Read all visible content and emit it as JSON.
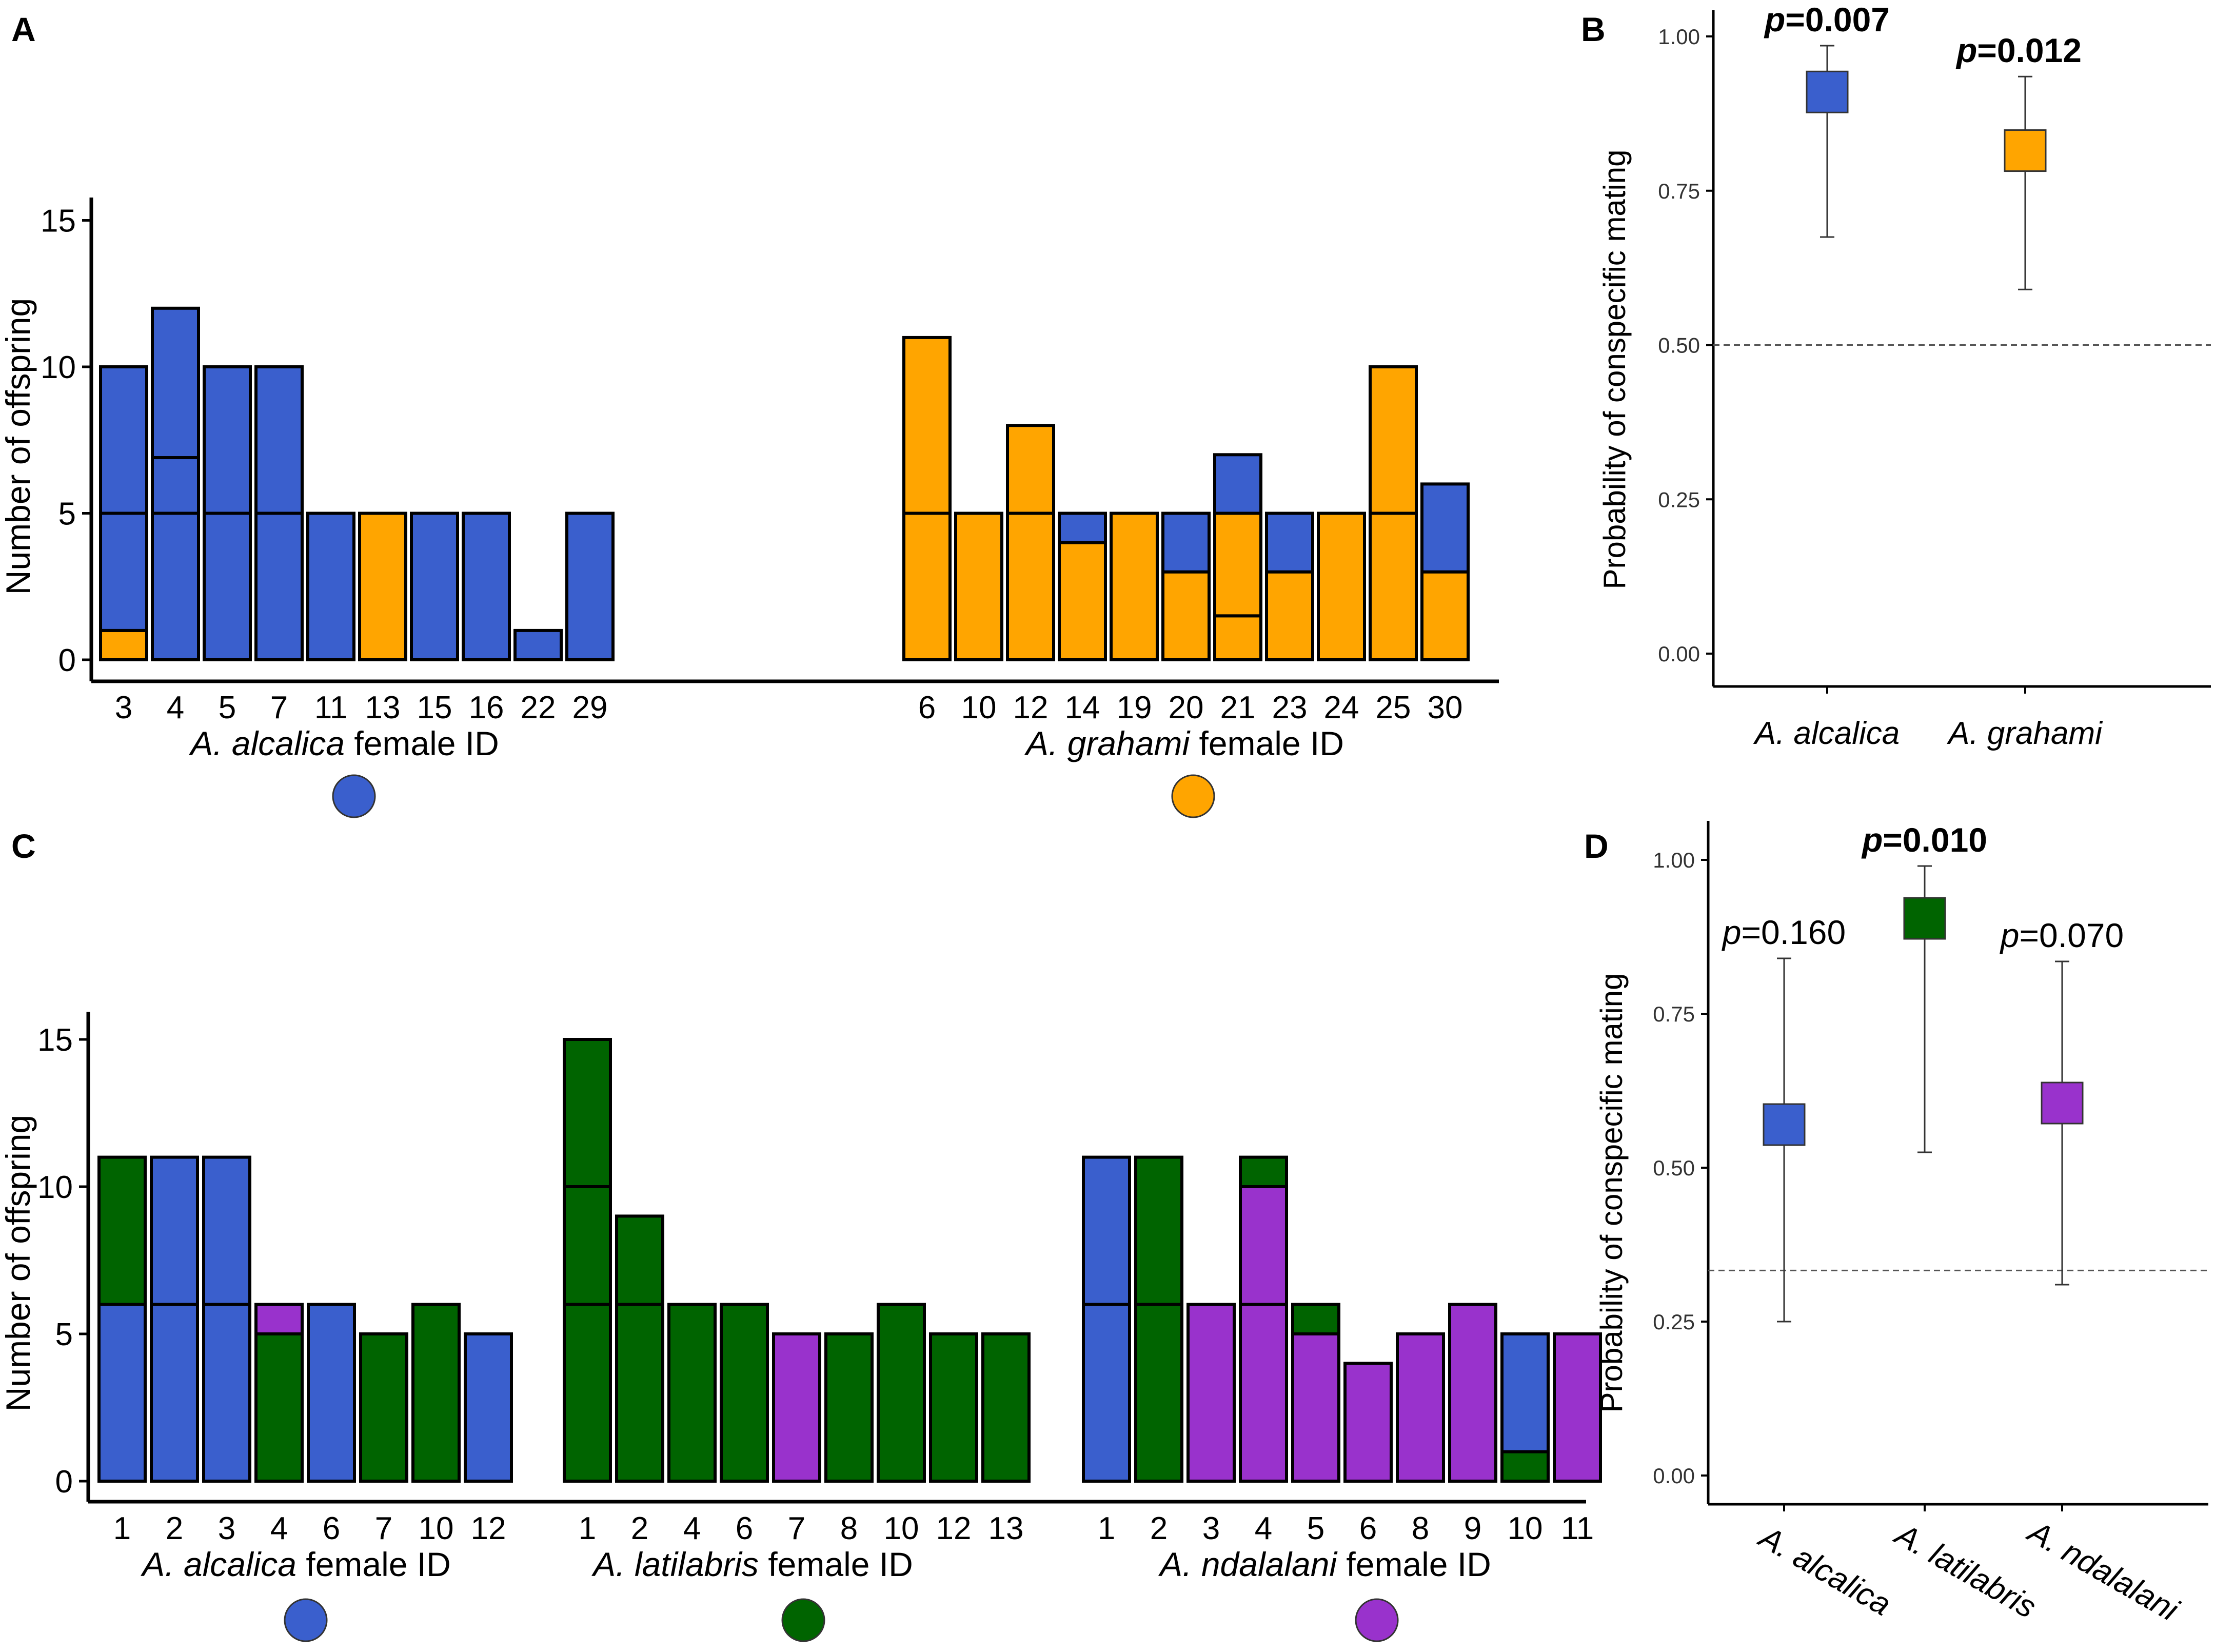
{
  "colors": {
    "alcalica": "#3a5fcd",
    "grahami": "#ffa500",
    "latilabris": "#006400",
    "ndalalani": "#9932cc",
    "outline": "#000000",
    "axis": "#000000",
    "errorbar": "#333333",
    "reference_line": "#555555"
  },
  "chart_data": [
    {
      "panel": "A",
      "type": "bar",
      "stacked": true,
      "ylabel": "Number of offspring",
      "ylim": [
        0,
        16
      ],
      "yticks": [
        0,
        5,
        10,
        15
      ],
      "groups": [
        {
          "xlabel_italic": "A. alcalica",
          "xlabel_rest": "female ID",
          "color_key": "alcalica",
          "bars": [
            {
              "id": "3",
              "segments": [
                {
                  "from": 0,
                  "to": 1,
                  "sp": "grahami"
                },
                {
                  "from": 1,
                  "to": 5,
                  "sp": "alcalica"
                },
                {
                  "from": 5,
                  "to": 10,
                  "sp": "alcalica"
                }
              ]
            },
            {
              "id": "4",
              "segments": [
                {
                  "from": 0,
                  "to": 5,
                  "sp": "alcalica"
                },
                {
                  "from": 5,
                  "to": 6.9,
                  "sp": "alcalica"
                },
                {
                  "from": 6.9,
                  "to": 12,
                  "sp": "alcalica"
                }
              ]
            },
            {
              "id": "5",
              "segments": [
                {
                  "from": 0,
                  "to": 5,
                  "sp": "alcalica"
                },
                {
                  "from": 5,
                  "to": 10,
                  "sp": "alcalica"
                }
              ]
            },
            {
              "id": "7",
              "segments": [
                {
                  "from": 0,
                  "to": 5,
                  "sp": "alcalica"
                },
                {
                  "from": 5,
                  "to": 10,
                  "sp": "alcalica"
                }
              ]
            },
            {
              "id": "11",
              "segments": [
                {
                  "from": 0,
                  "to": 5,
                  "sp": "alcalica"
                }
              ]
            },
            {
              "id": "13",
              "segments": [
                {
                  "from": 0,
                  "to": 5,
                  "sp": "grahami"
                }
              ]
            },
            {
              "id": "15",
              "segments": [
                {
                  "from": 0,
                  "to": 5,
                  "sp": "alcalica"
                }
              ]
            },
            {
              "id": "16",
              "segments": [
                {
                  "from": 0,
                  "to": 5,
                  "sp": "alcalica"
                }
              ]
            },
            {
              "id": "22",
              "segments": [
                {
                  "from": 0,
                  "to": 1,
                  "sp": "alcalica"
                }
              ]
            },
            {
              "id": "29",
              "segments": [
                {
                  "from": 0,
                  "to": 5,
                  "sp": "alcalica"
                }
              ]
            }
          ]
        },
        {
          "xlabel_italic": "A. grahami",
          "xlabel_rest": "female ID",
          "color_key": "grahami",
          "bars": [
            {
              "id": "6",
              "segments": [
                {
                  "from": 0,
                  "to": 5,
                  "sp": "grahami"
                },
                {
                  "from": 5,
                  "to": 11,
                  "sp": "grahami"
                }
              ]
            },
            {
              "id": "10",
              "segments": [
                {
                  "from": 0,
                  "to": 5,
                  "sp": "grahami"
                }
              ]
            },
            {
              "id": "12",
              "segments": [
                {
                  "from": 0,
                  "to": 5,
                  "sp": "grahami"
                },
                {
                  "from": 5,
                  "to": 8,
                  "sp": "grahami"
                }
              ]
            },
            {
              "id": "14",
              "segments": [
                {
                  "from": 0,
                  "to": 4,
                  "sp": "grahami"
                },
                {
                  "from": 4,
                  "to": 5,
                  "sp": "alcalica"
                }
              ]
            },
            {
              "id": "19",
              "segments": [
                {
                  "from": 0,
                  "to": 5,
                  "sp": "grahami"
                }
              ]
            },
            {
              "id": "20",
              "segments": [
                {
                  "from": 0,
                  "to": 3,
                  "sp": "grahami"
                },
                {
                  "from": 3,
                  "to": 5,
                  "sp": "alcalica"
                }
              ]
            },
            {
              "id": "21",
              "segments": [
                {
                  "from": 0,
                  "to": 1.5,
                  "sp": "grahami"
                },
                {
                  "from": 1.5,
                  "to": 5,
                  "sp": "grahami"
                },
                {
                  "from": 5,
                  "to": 7,
                  "sp": "alcalica"
                }
              ]
            },
            {
              "id": "23",
              "segments": [
                {
                  "from": 0,
                  "to": 3,
                  "sp": "grahami"
                },
                {
                  "from": 3,
                  "to": 5,
                  "sp": "alcalica"
                }
              ]
            },
            {
              "id": "24",
              "segments": [
                {
                  "from": 0,
                  "to": 5,
                  "sp": "grahami"
                }
              ]
            },
            {
              "id": "25",
              "segments": [
                {
                  "from": 0,
                  "to": 5,
                  "sp": "grahami"
                },
                {
                  "from": 5,
                  "to": 10,
                  "sp": "grahami"
                }
              ]
            },
            {
              "id": "30",
              "segments": [
                {
                  "from": 0,
                  "to": 3,
                  "sp": "grahami"
                },
                {
                  "from": 3,
                  "to": 6,
                  "sp": "alcalica"
                }
              ]
            }
          ]
        }
      ]
    },
    {
      "panel": "B",
      "type": "scatter",
      "ylabel": "Probability of conspecific mating",
      "ylim": [
        0,
        1.05
      ],
      "yticks": [
        "0.00",
        "0.25",
        "0.50",
        "0.75",
        "1.00"
      ],
      "reference_line": 0.5,
      "points": [
        {
          "label": "A. alcalica",
          "estimate": 0.91,
          "lower": 0.675,
          "upper": 0.985,
          "p_label": "p",
          "p_value": "=0.007",
          "bold": true,
          "color_key": "alcalica"
        },
        {
          "label": "A. grahami",
          "estimate": 0.815,
          "lower": 0.59,
          "upper": 0.935,
          "p_label": "p",
          "p_value": "=0.012",
          "bold": true,
          "color_key": "grahami"
        }
      ]
    },
    {
      "panel": "C",
      "type": "bar",
      "stacked": true,
      "ylabel": "Number of offspring",
      "ylim": [
        0,
        16
      ],
      "yticks": [
        0,
        5,
        10,
        15
      ],
      "groups": [
        {
          "xlabel_italic": "A. alcalica",
          "xlabel_rest": "female ID",
          "color_key": "alcalica",
          "bars": [
            {
              "id": "1",
              "segments": [
                {
                  "from": 0,
                  "to": 6,
                  "sp": "alcalica"
                },
                {
                  "from": 6,
                  "to": 11,
                  "sp": "latilabris"
                }
              ]
            },
            {
              "id": "2",
              "segments": [
                {
                  "from": 0,
                  "to": 6,
                  "sp": "alcalica"
                },
                {
                  "from": 6,
                  "to": 11,
                  "sp": "alcalica"
                }
              ]
            },
            {
              "id": "3",
              "segments": [
                {
                  "from": 0,
                  "to": 6,
                  "sp": "alcalica"
                },
                {
                  "from": 6,
                  "to": 11,
                  "sp": "alcalica"
                }
              ]
            },
            {
              "id": "4",
              "segments": [
                {
                  "from": 0,
                  "to": 5,
                  "sp": "latilabris"
                },
                {
                  "from": 5,
                  "to": 6,
                  "sp": "ndalalani"
                }
              ]
            },
            {
              "id": "6",
              "segments": [
                {
                  "from": 0,
                  "to": 6,
                  "sp": "alcalica"
                }
              ]
            },
            {
              "id": "7",
              "segments": [
                {
                  "from": 0,
                  "to": 5,
                  "sp": "latilabris"
                }
              ]
            },
            {
              "id": "10",
              "segments": [
                {
                  "from": 0,
                  "to": 6,
                  "sp": "latilabris"
                }
              ]
            },
            {
              "id": "12",
              "segments": [
                {
                  "from": 0,
                  "to": 5,
                  "sp": "alcalica"
                }
              ]
            }
          ]
        },
        {
          "xlabel_italic": "A. latilabris",
          "xlabel_rest": "female ID",
          "color_key": "latilabris",
          "bars": [
            {
              "id": "1",
              "segments": [
                {
                  "from": 0,
                  "to": 6,
                  "sp": "latilabris"
                },
                {
                  "from": 6,
                  "to": 10,
                  "sp": "latilabris"
                },
                {
                  "from": 10,
                  "to": 15,
                  "sp": "latilabris"
                }
              ]
            },
            {
              "id": "2",
              "segments": [
                {
                  "from": 0,
                  "to": 6,
                  "sp": "latilabris"
                },
                {
                  "from": 6,
                  "to": 9,
                  "sp": "latilabris"
                }
              ]
            },
            {
              "id": "4",
              "segments": [
                {
                  "from": 0,
                  "to": 6,
                  "sp": "latilabris"
                }
              ]
            },
            {
              "id": "6",
              "segments": [
                {
                  "from": 0,
                  "to": 6,
                  "sp": "latilabris"
                }
              ]
            },
            {
              "id": "7",
              "segments": [
                {
                  "from": 0,
                  "to": 5,
                  "sp": "ndalalani"
                }
              ]
            },
            {
              "id": "8",
              "segments": [
                {
                  "from": 0,
                  "to": 5,
                  "sp": "latilabris"
                }
              ]
            },
            {
              "id": "10",
              "segments": [
                {
                  "from": 0,
                  "to": 6,
                  "sp": "latilabris"
                }
              ]
            },
            {
              "id": "12",
              "segments": [
                {
                  "from": 0,
                  "to": 5,
                  "sp": "latilabris"
                }
              ]
            },
            {
              "id": "13",
              "segments": [
                {
                  "from": 0,
                  "to": 5,
                  "sp": "latilabris"
                }
              ]
            }
          ]
        },
        {
          "xlabel_italic": "A. ndalalani",
          "xlabel_rest": "female ID",
          "color_key": "ndalalani",
          "bars": [
            {
              "id": "1",
              "segments": [
                {
                  "from": 0,
                  "to": 6,
                  "sp": "alcalica"
                },
                {
                  "from": 6,
                  "to": 11,
                  "sp": "alcalica"
                }
              ]
            },
            {
              "id": "2",
              "segments": [
                {
                  "from": 0,
                  "to": 6,
                  "sp": "latilabris"
                },
                {
                  "from": 6,
                  "to": 11,
                  "sp": "latilabris"
                }
              ]
            },
            {
              "id": "3",
              "segments": [
                {
                  "from": 0,
                  "to": 6,
                  "sp": "ndalalani"
                }
              ]
            },
            {
              "id": "4",
              "segments": [
                {
                  "from": 0,
                  "to": 6,
                  "sp": "ndalalani"
                },
                {
                  "from": 6,
                  "to": 10,
                  "sp": "ndalalani"
                },
                {
                  "from": 10,
                  "to": 11,
                  "sp": "latilabris"
                }
              ]
            },
            {
              "id": "5",
              "segments": [
                {
                  "from": 0,
                  "to": 5,
                  "sp": "ndalalani"
                },
                {
                  "from": 5,
                  "to": 6,
                  "sp": "latilabris"
                }
              ]
            },
            {
              "id": "6",
              "segments": [
                {
                  "from": 0,
                  "to": 4,
                  "sp": "ndalalani"
                }
              ]
            },
            {
              "id": "8",
              "segments": [
                {
                  "from": 0,
                  "to": 5,
                  "sp": "ndalalani"
                }
              ]
            },
            {
              "id": "9",
              "segments": [
                {
                  "from": 0,
                  "to": 6,
                  "sp": "ndalalani"
                }
              ]
            },
            {
              "id": "10",
              "segments": [
                {
                  "from": 0,
                  "to": 1,
                  "sp": "latilabris"
                },
                {
                  "from": 1,
                  "to": 5,
                  "sp": "alcalica"
                }
              ]
            },
            {
              "id": "11",
              "segments": [
                {
                  "from": 0,
                  "to": 5,
                  "sp": "ndalalani"
                }
              ]
            }
          ]
        }
      ]
    },
    {
      "panel": "D",
      "type": "scatter",
      "ylabel": "Probability of conspecific mating",
      "ylim": [
        0,
        1.05
      ],
      "yticks": [
        "0.00",
        "0.25",
        "0.50",
        "0.75",
        "1.00"
      ],
      "reference_line": 0.333,
      "points": [
        {
          "label": "A. alcalica",
          "estimate": 0.57,
          "lower": 0.25,
          "upper": 0.84,
          "p_label": "p",
          "p_value": "=0.160",
          "bold": false,
          "color_key": "alcalica"
        },
        {
          "label": "A. latilabris",
          "estimate": 0.905,
          "lower": 0.525,
          "upper": 0.99,
          "p_label": "p",
          "p_value": "=0.010",
          "bold": true,
          "color_key": "latilabris"
        },
        {
          "label": "A. ndalalani",
          "estimate": 0.605,
          "lower": 0.31,
          "upper": 0.835,
          "p_label": "p",
          "p_value": "=0.070",
          "bold": false,
          "color_key": "ndalalani"
        }
      ]
    }
  ]
}
